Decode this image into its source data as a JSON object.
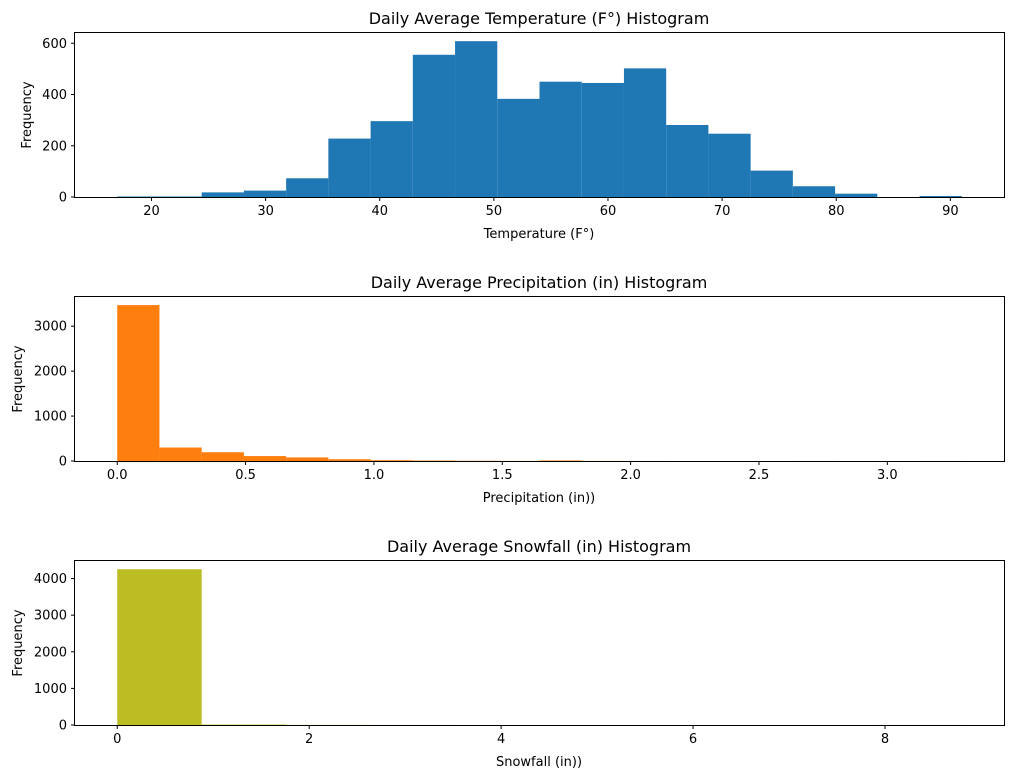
{
  "chart_data": [
    {
      "type": "bar",
      "title": "Daily Average Temperature (F°) Histogram",
      "xlabel": "Temperature (F°)",
      "ylabel": "Frequency",
      "color": "#1f77b4",
      "xlim": [
        13.3,
        94.7
      ],
      "ylim": [
        0,
        640
      ],
      "xticks": [
        20,
        30,
        40,
        50,
        60,
        70,
        80,
        90
      ],
      "yticks": [
        0,
        200,
        400,
        600
      ],
      "bin_edges": [
        17.0,
        20.7,
        24.4,
        28.1,
        31.8,
        35.5,
        39.2,
        42.9,
        46.6,
        50.3,
        54.0,
        57.7,
        61.4,
        65.1,
        68.8,
        72.5,
        76.2,
        79.9,
        83.6,
        87.3,
        91.0
      ],
      "values": [
        2,
        2,
        18,
        25,
        73,
        228,
        296,
        555,
        608,
        383,
        450,
        445,
        502,
        281,
        247,
        103,
        42,
        13,
        0,
        4
      ]
    },
    {
      "type": "bar",
      "title": "Daily Average Precipitation (in) Histogram",
      "xlabel": "Precipitation (in))",
      "ylabel": "Frequency",
      "color": "#ff7f0e",
      "xlim": [
        -0.1645,
        3.4545
      ],
      "ylim": [
        0,
        3650
      ],
      "xticks": [
        0.0,
        0.5,
        1.0,
        1.5,
        2.0,
        2.5,
        3.0
      ],
      "yticks": [
        0,
        1000,
        2000,
        3000
      ],
      "bin_edges": [
        0.0,
        0.1645,
        0.329,
        0.4935,
        0.658,
        0.8225,
        0.987,
        1.1515,
        1.316,
        1.4805,
        1.645,
        1.8095,
        1.974,
        2.1385,
        2.303,
        2.4675,
        2.632,
        2.7965,
        2.961,
        3.1255,
        3.29
      ],
      "values": [
        3470,
        300,
        195,
        110,
        80,
        40,
        18,
        10,
        5,
        2,
        12,
        2,
        1,
        0,
        0,
        0,
        1,
        0,
        0,
        1
      ]
    },
    {
      "type": "bar",
      "title": "Daily Average Snowfall (in) Histogram",
      "xlabel": "Snowfall (in))",
      "ylabel": "Frequency",
      "color": "#bcbd22",
      "xlim": [
        -0.44,
        9.24
      ],
      "ylim": [
        0,
        4480
      ],
      "xticks": [
        0,
        2,
        4,
        6,
        8
      ],
      "yticks": [
        0,
        1000,
        2000,
        3000,
        4000
      ],
      "bin_edges": [
        0.0,
        0.88,
        1.76,
        2.64,
        3.52,
        4.4,
        5.28,
        6.16,
        7.04,
        7.92,
        8.8
      ],
      "values": [
        4255,
        12,
        3,
        1,
        0,
        0,
        0,
        0,
        0,
        1
      ]
    }
  ]
}
